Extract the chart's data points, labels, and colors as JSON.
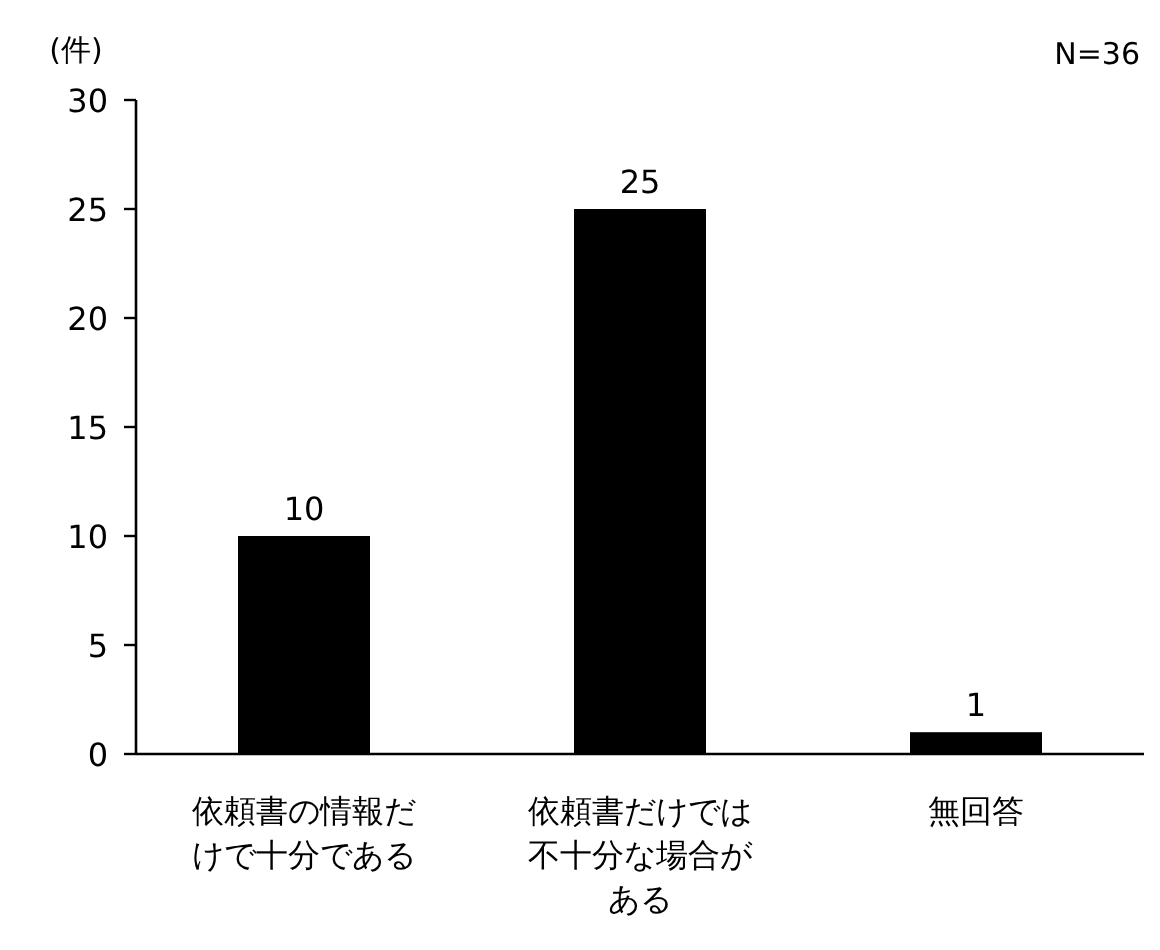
{
  "chart_data": {
    "type": "bar",
    "ylabel": "(件)",
    "annotations": [
      "N=36"
    ],
    "categories": [
      "依頼書の情報だけで十分である",
      "依頼書だけでは不十分な場合がある",
      "無回答"
    ],
    "values": [
      10,
      25,
      1
    ],
    "color": "#000000",
    "ylim": [
      0,
      30
    ],
    "yticks": [
      0,
      5,
      10,
      15,
      20,
      25,
      30
    ],
    "data_labels": true,
    "grid": false
  }
}
